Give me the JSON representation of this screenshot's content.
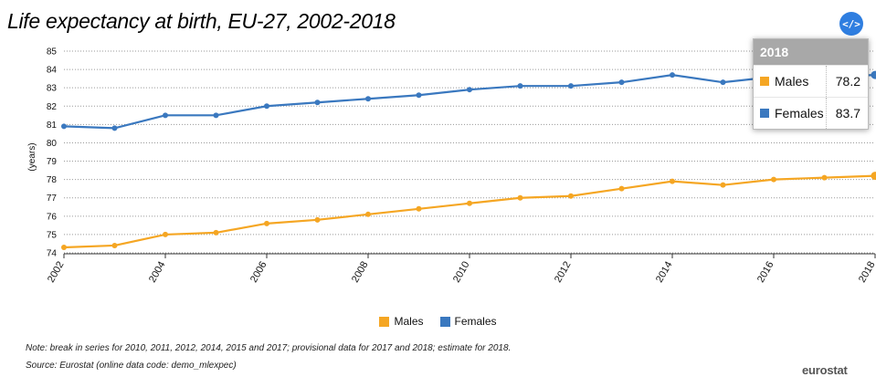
{
  "title": "Life expectancy at birth, EU-27, 2002-2018",
  "embed_icon": "</>",
  "note": "Note: break in series for 2010, 2011, 2012, 2014, 2015 and 2017; provisional data for 2017 and 2018; estimate for 2018.",
  "source": "Source: Eurostat (online data code: demo_mlexpec)",
  "logo": "eurostat",
  "tooltip": {
    "year": "2018",
    "rows": [
      {
        "name": "Males",
        "value": "78.2",
        "color": "#f5a623"
      },
      {
        "name": "Females",
        "value": "83.7",
        "color": "#3a78bf"
      }
    ]
  },
  "chart_data": {
    "type": "line",
    "ylabel": "(years)",
    "ylim": [
      74,
      85
    ],
    "yticks": [
      74,
      75,
      76,
      77,
      78,
      79,
      80,
      81,
      82,
      83,
      84,
      85
    ],
    "x": [
      2002,
      2003,
      2004,
      2005,
      2006,
      2007,
      2008,
      2009,
      2010,
      2011,
      2012,
      2013,
      2014,
      2015,
      2016,
      2017,
      2018
    ],
    "xticks": [
      "2002",
      "2004",
      "2006",
      "2008",
      "2010",
      "2012",
      "2014",
      "2016",
      "2018"
    ],
    "grid": true,
    "legend": "bottom-center",
    "series": [
      {
        "name": "Males",
        "color": "#f5a623",
        "values": [
          74.3,
          74.4,
          75.0,
          75.1,
          75.6,
          75.8,
          76.1,
          76.4,
          76.7,
          77.0,
          77.1,
          77.5,
          77.9,
          77.7,
          78.0,
          78.1,
          78.2
        ]
      },
      {
        "name": "Females",
        "color": "#3a78bf",
        "values": [
          80.9,
          80.8,
          81.5,
          81.5,
          82.0,
          82.2,
          82.4,
          82.6,
          82.9,
          83.1,
          83.1,
          83.3,
          83.7,
          83.3,
          83.6,
          83.6,
          83.7
        ]
      }
    ]
  }
}
